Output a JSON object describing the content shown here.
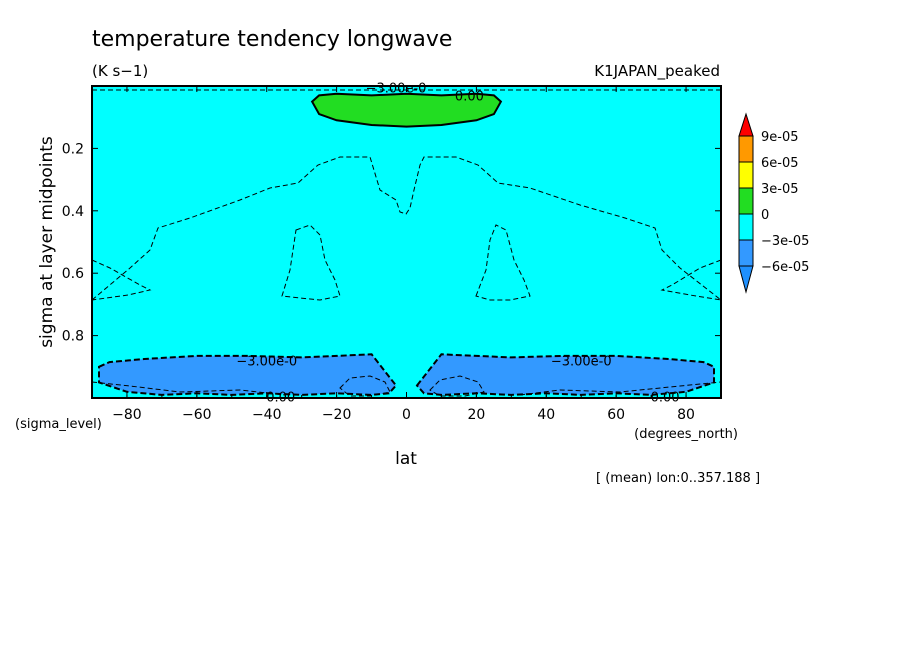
{
  "chart_data": {
    "type": "contour",
    "title": "temperature tendency longwave",
    "units": "(K s−1)",
    "experiment": "K1JAPAN_peaked",
    "xlabel": "lat",
    "ylabel": "sigma at layer midpoints",
    "x_coord_name": "(degrees_north)",
    "y_coord_name": "(sigma_level)",
    "note": "[ (mean) lon:0..357.188 ]",
    "xlim": [
      -90,
      90
    ],
    "ylim": [
      1.0,
      0.0
    ],
    "x_ticks": [
      -80,
      -60,
      -40,
      -20,
      0,
      20,
      40,
      60,
      80
    ],
    "x_tick_labels": [
      "−80",
      "−60",
      "−40",
      "−20",
      "0",
      "20",
      "40",
      "60",
      "80"
    ],
    "y_ticks": [
      0.2,
      0.4,
      0.6,
      0.8
    ],
    "y_tick_labels": [
      "0.2",
      "0.4",
      "0.6",
      "0.8"
    ],
    "background_color": "#00ffff",
    "colorbar": {
      "levels": [
        {
          "label": "",
          "color": "#1e90ff"
        },
        {
          "label": "−6e-05",
          "color": "#3399ff"
        },
        {
          "label": "−3e-05",
          "color": "#00ffff"
        },
        {
          "label": "0",
          "color": "#22dd22"
        },
        {
          "label": "3e-05",
          "color": "#ffff00"
        },
        {
          "label": "6e-05",
          "color": "#ff9900"
        },
        {
          "label": "9e-05",
          "color": "#ff0000"
        }
      ],
      "tick_labels": [
        "9e-05",
        "6e-05",
        "3e-05",
        "0",
        "−3e-05",
        "−6e-05"
      ]
    },
    "contour_labels": [
      {
        "text": "−3.00e-0",
        "lat": -3,
        "sigma": 0.005
      },
      {
        "text": "0.00",
        "lat": 18,
        "sigma": 0.03
      },
      {
        "text": "−3.00e-0",
        "lat": -40,
        "sigma": 0.88
      },
      {
        "text": "−3.00e-0",
        "lat": 50,
        "sigma": 0.88
      },
      {
        "text": "0.00",
        "lat": -36,
        "sigma": 0.995
      },
      {
        "text": "0.00",
        "lat": 74,
        "sigma": 0.995
      }
    ],
    "regions": [
      {
        "name": "positive-top",
        "value_range": "0 to 3e-05",
        "color": "#22dd22",
        "lat": [
          -27,
          -25,
          -20,
          -10,
          0,
          10,
          20,
          25,
          27,
          25,
          20,
          10,
          0,
          -10,
          -20,
          -25
        ],
        "sigma": [
          0.05,
          0.03,
          0.025,
          0.03,
          0.025,
          0.03,
          0.025,
          0.03,
          0.05,
          0.09,
          0.11,
          0.125,
          0.13,
          0.125,
          0.11,
          0.09
        ]
      },
      {
        "name": "negative-south",
        "value_range": "-6e-05 to -3e-05",
        "color": "#3399ff",
        "lat": [
          -88,
          -85,
          -75,
          -60,
          -45,
          -30,
          -20,
          -10,
          -3,
          -5,
          -10,
          -20,
          -30,
          -40,
          -50,
          -60,
          -70,
          -80,
          -88
        ],
        "sigma": [
          0.9,
          0.885,
          0.875,
          0.865,
          0.865,
          0.87,
          0.865,
          0.86,
          0.96,
          0.985,
          0.99,
          0.985,
          0.99,
          0.985,
          0.99,
          0.985,
          0.99,
          0.98,
          0.95
        ]
      },
      {
        "name": "negative-north",
        "value_range": "-6e-05 to -3e-05",
        "color": "#3399ff",
        "lat": [
          3,
          10,
          20,
          30,
          45,
          60,
          75,
          85,
          88,
          88,
          80,
          70,
          60,
          50,
          40,
          30,
          20,
          10,
          5
        ],
        "sigma": [
          0.96,
          0.86,
          0.865,
          0.87,
          0.865,
          0.865,
          0.875,
          0.885,
          0.9,
          0.95,
          0.98,
          0.99,
          0.985,
          0.99,
          0.985,
          0.99,
          0.985,
          0.99,
          0.985
        ]
      }
    ]
  }
}
